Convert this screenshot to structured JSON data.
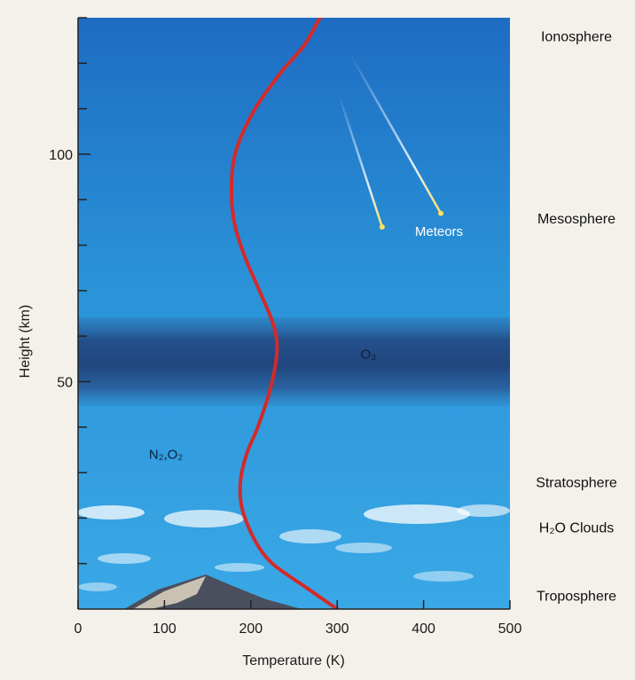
{
  "chart_data": {
    "type": "line",
    "xlabel": "Temperature (K)",
    "ylabel": "Height (km)",
    "xlim": [
      0,
      500
    ],
    "ylim": [
      0,
      130
    ],
    "x_ticks": [
      0,
      100,
      200,
      300,
      400,
      500
    ],
    "y_ticks": [
      50,
      100
    ],
    "y_minor_step": 10,
    "series": [
      {
        "x": [
          300,
          262,
          225,
          205,
          190,
          188,
          195,
          208,
          222,
          230,
          227,
          210,
          192,
          180,
          178,
          185,
          205,
          235,
          262,
          280
        ],
        "y": [
          0,
          5,
          10,
          15,
          22,
          28,
          34,
          40,
          48,
          56,
          62,
          70,
          78,
          86,
          95,
          102,
          110,
          118,
          124,
          130
        ],
        "color": "#d42a2a"
      }
    ],
    "layer_labels": [
      {
        "text": "Ionosphere",
        "height": 126
      },
      {
        "text": "Mesosphere",
        "height": 86
      },
      {
        "text": "Stratosphere",
        "height": 28
      },
      {
        "text": "H₂O Clouds",
        "height": 18
      },
      {
        "text": "Troposphere",
        "height": 3
      }
    ],
    "annotations": [
      {
        "text": "Meteors",
        "x": 390,
        "y": 83
      },
      {
        "text": "O₃",
        "x": 327,
        "y": 56
      },
      {
        "text": "N₂,O₂",
        "x": 82,
        "y": 34
      }
    ],
    "meteor_trails": [
      {
        "x0": 315,
        "y0": 122,
        "x1": 420,
        "y1": 87
      },
      {
        "x0": 302,
        "y0": 113,
        "x1": 352,
        "y1": 84
      }
    ],
    "colors": {
      "sky_top": "#1f6fc4",
      "sky_mid": "#2c97da",
      "sky_bottom": "#39a6e4",
      "ozone_band": "#23467e",
      "curve": "#d42a2a"
    }
  }
}
